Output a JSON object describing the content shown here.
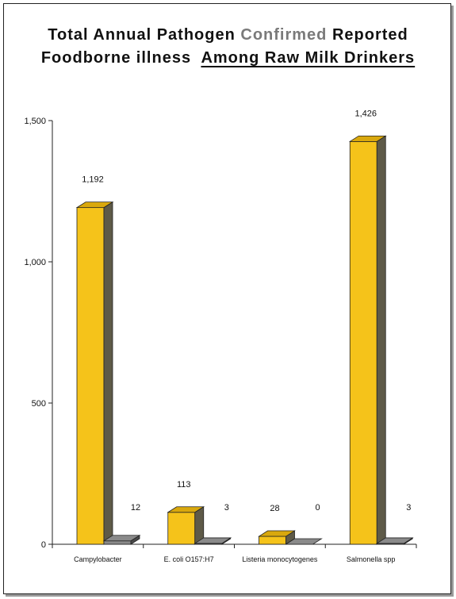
{
  "title": {
    "line1_part1": "Total Annual Pathogen",
    "line1_part2": "Confirmed",
    "line1_part3": "Reported",
    "line2_part1": "Foodborne illness",
    "line2_part2": "Among Raw Milk Drinkers"
  },
  "colors": {
    "bar_front": "#f5c31a",
    "bar_side": "#5e5a48",
    "bar_top": "#d9a80d",
    "zero_bar_top": "#8a8a8a",
    "zero_bar_side": "#4a4a4a"
  },
  "chart_data": {
    "type": "bar",
    "categories": [
      "Campylobacter",
      "E. coli O157:H7",
      "Listeria monocytogenes",
      "Salmonella spp"
    ],
    "series": [
      {
        "values": [
          1192,
          113,
          28,
          1426
        ],
        "value_labels": [
          "1,192",
          "113",
          "28",
          "1,426"
        ]
      },
      {
        "values": [
          12,
          3,
          0,
          3
        ],
        "value_labels": [
          "12",
          "3",
          "0",
          "3"
        ]
      }
    ],
    "ylim": [
      0,
      1500
    ],
    "yticks": [
      0,
      500,
      1000,
      1500
    ],
    "ytick_labels": [
      "0",
      "500",
      "1,000",
      "1,500"
    ],
    "grid": false,
    "style": "3d-bar"
  }
}
